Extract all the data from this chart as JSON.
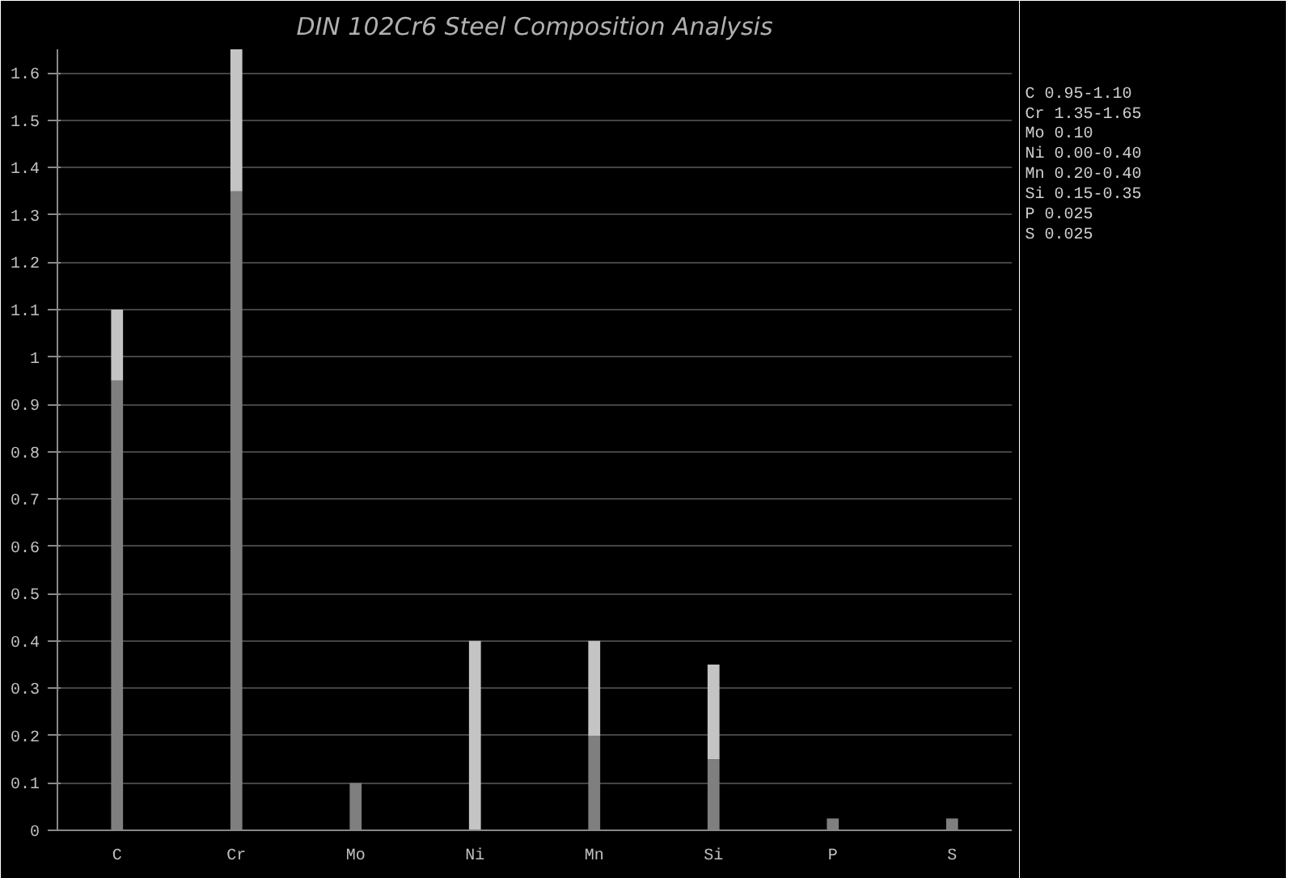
{
  "chart_data": {
    "type": "bar",
    "stacked": true,
    "title": "DIN 102Cr6 Steel Composition Analysis",
    "categories": [
      "C",
      "Cr",
      "Mo",
      "Ni",
      "Mn",
      "Si",
      "P",
      "S"
    ],
    "series": [
      {
        "color": "#7f7f7f",
        "values": [
          0.95,
          1.35,
          0.1,
          0,
          0.2,
          0.15,
          0.025,
          0.025
        ]
      },
      {
        "color": "#c4c4c4",
        "values": [
          0.15,
          0.3,
          0,
          0.4,
          0.2,
          0.2,
          0,
          0
        ]
      }
    ],
    "ylim": [
      0,
      1.65
    ],
    "yticks": [
      0,
      0.1,
      0.2,
      0.3,
      0.4,
      0.5,
      0.6,
      0.7,
      0.8,
      0.9,
      1,
      1.1,
      1.2,
      1.3,
      1.4,
      1.5,
      1.6
    ],
    "grid": "y",
    "annotations": [
      "C  0.95-1.10",
      "Cr 1.35-1.65",
      "Mo 0.10",
      "Ni 0.00-0.40",
      "Mn 0.20-0.40",
      "Si 0.15-0.35",
      "P  0.025",
      "S  0.025"
    ]
  }
}
